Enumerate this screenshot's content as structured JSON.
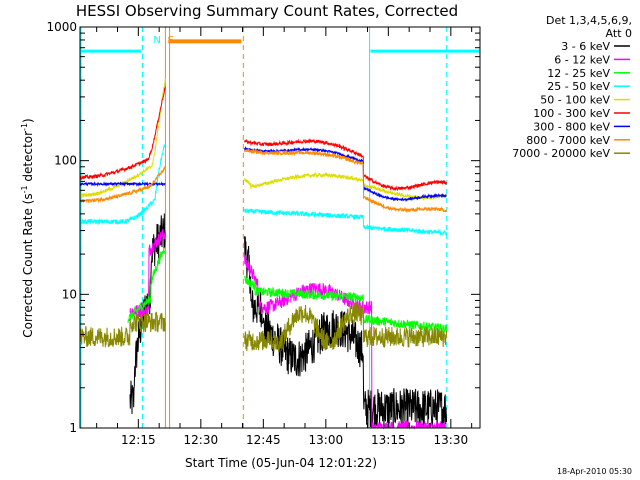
{
  "chart_data": {
    "type": "line",
    "title": "HESSI Observing Summary Count Rates, Corrected",
    "xlabel": "Start Time (05-Jun-04 12:01:22)",
    "ylabel_main": "Corrected Count Rate (s",
    "ylabel_sup1": "-1",
    "ylabel_mid": " detector",
    "ylabel_sup2": "-1",
    "ylabel_end": ")",
    "y_scale": "log",
    "ylim": [
      1,
      1000
    ],
    "xlim_minutes": [
      0,
      96
    ],
    "x_ticks": [
      {
        "m": 14,
        "label": "12:15"
      },
      {
        "m": 29,
        "label": "12:30"
      },
      {
        "m": 44,
        "label": "12:45"
      },
      {
        "m": 59,
        "label": "13:00"
      },
      {
        "m": 74,
        "label": "13:15"
      },
      {
        "m": 89,
        "label": "13:30"
      }
    ],
    "y_ticks": [
      {
        "v": 1,
        "label": "1"
      },
      {
        "v": 10,
        "label": "10"
      },
      {
        "v": 100,
        "label": "100"
      },
      {
        "v": 1000,
        "label": "1000"
      }
    ],
    "legend_header": [
      "Det 1,3,4,5,6,9,",
      "Att 0"
    ],
    "legend_placement": "right",
    "series": [
      {
        "name": "3 - 6 keV",
        "color": "#000000"
      },
      {
        "name": "6 - 12 keV",
        "color": "#ff00ff"
      },
      {
        "name": "12 - 25 keV",
        "color": "#00ff00"
      },
      {
        "name": "25 - 50 keV",
        "color": "#00ffff"
      },
      {
        "name": "50 - 100 keV",
        "color": "#dddd00"
      },
      {
        "name": "100 - 300 keV",
        "color": "#ff0000"
      },
      {
        "name": "300 - 800 keV",
        "color": "#0000ff"
      },
      {
        "name": "800 - 7000 keV",
        "color": "#ff8800"
      },
      {
        "name": "7000 - 20000 keV",
        "color": "#888800"
      }
    ],
    "markers": [
      {
        "label": "N",
        "m": 18.5,
        "color": "#00ffff"
      },
      {
        "label": "S",
        "m": 21.8,
        "color": "#ff8800"
      }
    ],
    "timestamp": "18-Apr-2010 05:30"
  }
}
